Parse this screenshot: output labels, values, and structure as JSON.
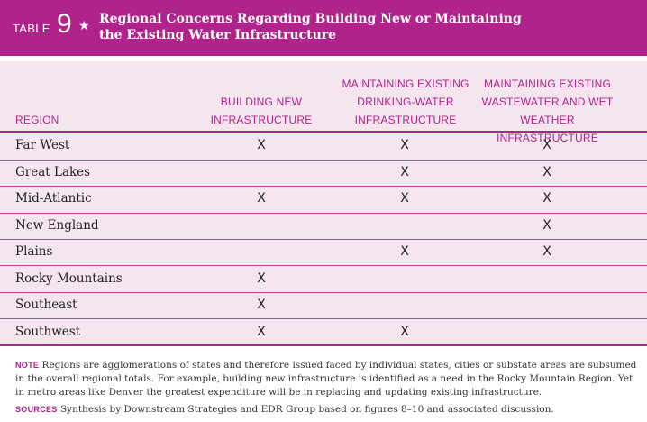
{
  "table": {
    "label": "TABLE",
    "number": "9",
    "star": "★",
    "title_line1": "Regional Concerns Regarding Building New or Maintaining",
    "title_line2": "the Existing Water Infrastructure"
  },
  "headers": {
    "region": "REGION",
    "col1": [
      "BUILDING NEW",
      "INFRASTRUCTURE"
    ],
    "col2": [
      "MAINTAINING EXISTING",
      "DRINKING-WATER",
      "INFRASTRUCTURE"
    ],
    "col3": [
      "MAINTAINING EXISTING",
      "WASTEWATER AND WET",
      "WEATHER INFRASTRUCTURE"
    ]
  },
  "mark_symbol": "X",
  "rows": [
    {
      "region": "Far West",
      "marks": [
        true,
        true,
        true
      ]
    },
    {
      "region": "Great Lakes",
      "marks": [
        false,
        true,
        true
      ]
    },
    {
      "region": "Mid-Atlantic",
      "marks": [
        true,
        true,
        true
      ]
    },
    {
      "region": "New England",
      "marks": [
        false,
        false,
        true
      ]
    },
    {
      "region": "Plains",
      "marks": [
        false,
        true,
        true
      ]
    },
    {
      "region": "Rocky Mountains",
      "marks": [
        true,
        false,
        false
      ]
    },
    {
      "region": "Southeast",
      "marks": [
        true,
        false,
        false
      ]
    },
    {
      "region": "Southwest",
      "marks": [
        true,
        true,
        false
      ]
    }
  ],
  "note": {
    "label": "NOTE",
    "text": "Regions are agglomerations of states and therefore issued faced by individual states, cities or substate areas are subsumed in the overall regional totals. For example, building new infrastructure is identified as a need in the Rocky Mountain Region. Yet in metro areas like Denver the greatest expenditure will be in replacing and updating existing infrastructure."
  },
  "sources": {
    "label": "SOURCES",
    "text": "Synthesis by Downstream Strategies and EDR Group based on figures 8–10 and associated discussion."
  },
  "colors": {
    "accent": "#b0238a",
    "table_bg": "#f4e5ef"
  }
}
